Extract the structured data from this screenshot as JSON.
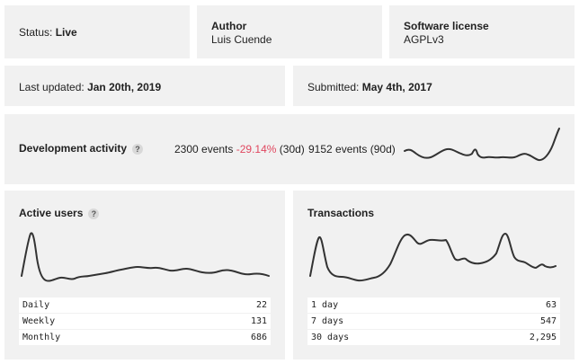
{
  "status": {
    "label": "Status:",
    "value": "Live"
  },
  "author": {
    "label": "Author",
    "value": "Luis Cuende"
  },
  "license": {
    "label": "Software license",
    "value": "AGPLv3"
  },
  "last_updated": {
    "label": "Last updated:",
    "value": "Jan 20th, 2019"
  },
  "submitted": {
    "label": "Submitted:",
    "value": "May 4th, 2017"
  },
  "dev_activity": {
    "label": "Development activity",
    "help": "?",
    "events_30d": "2300 events",
    "change": "-29.14%",
    "change_period": "(30d)",
    "events_90d": "9152 events (90d)"
  },
  "active_users": {
    "title": "Active users",
    "help": "?",
    "rows": [
      {
        "label": "Daily",
        "value": "22"
      },
      {
        "label": "Weekly",
        "value": "131"
      },
      {
        "label": "Monthly",
        "value": "686"
      }
    ]
  },
  "transactions": {
    "title": "Transactions",
    "rows": [
      {
        "label": "1 day",
        "value": "63"
      },
      {
        "label": "7 days",
        "value": "547"
      },
      {
        "label": "30 days",
        "value": "2,295"
      }
    ]
  },
  "colors": {
    "card_bg": "#f1f1f1",
    "negative": "#e0475f",
    "line": "#333333"
  }
}
